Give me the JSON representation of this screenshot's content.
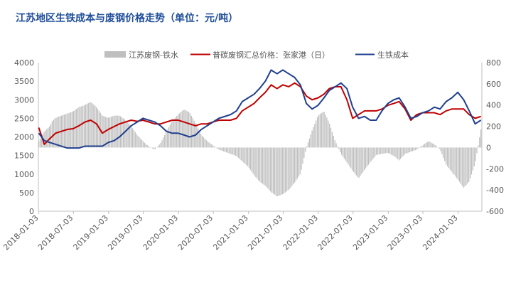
{
  "chart_data": {
    "type": "bar+line",
    "title": "江苏地区生铁成本与废钢价格走势（单位：元/吨）",
    "x_ticks": [
      "2018-01-03",
      "2018-07-03",
      "2019-01-03",
      "2019-07-03",
      "2020-01-03",
      "2020-07-03",
      "2021-01-03",
      "2021-07-03",
      "2022-01-03",
      "2022-07-03",
      "2023-01-03",
      "2023-07-03",
      "2024-01-03"
    ],
    "x_range": [
      "2018-01-01",
      "2024-05-06"
    ],
    "y_left": {
      "min": 0,
      "max": 4000,
      "step": 500,
      "ticks": [
        "0",
        "500",
        "1000",
        "1500",
        "2000",
        "2500",
        "3000",
        "3500",
        "4000"
      ]
    },
    "y_right": {
      "min": -600,
      "max": 800,
      "step": 200,
      "ticks": [
        "-600",
        "-400",
        "-200",
        "0",
        "200",
        "400",
        "600",
        "800"
      ]
    },
    "legend_position": "top-center",
    "colors": {
      "spread": "#bfbfbf",
      "scrap": "#c00000",
      "pig_iron": "#1f3f8f"
    },
    "series": [
      {
        "name": "江苏废钢-铁水",
        "type": "bar",
        "axis": "right",
        "points": [
          [
            "2018-01-03",
            60
          ],
          [
            "2018-02-01",
            150
          ],
          [
            "2018-03-01",
            200
          ],
          [
            "2018-03-15",
            250
          ],
          [
            "2018-04-01",
            280
          ],
          [
            "2018-05-01",
            300
          ],
          [
            "2018-06-01",
            320
          ],
          [
            "2018-07-01",
            340
          ],
          [
            "2018-08-01",
            380
          ],
          [
            "2018-09-01",
            400
          ],
          [
            "2018-10-01",
            430
          ],
          [
            "2018-11-01",
            380
          ],
          [
            "2018-12-01",
            300
          ],
          [
            "2019-01-01",
            280
          ],
          [
            "2019-02-01",
            300
          ],
          [
            "2019-03-01",
            300
          ],
          [
            "2019-04-01",
            260
          ],
          [
            "2019-05-01",
            200
          ],
          [
            "2019-06-01",
            120
          ],
          [
            "2019-07-01",
            60
          ],
          [
            "2019-08-01",
            10
          ],
          [
            "2019-09-01",
            -20
          ],
          [
            "2019-10-01",
            40
          ],
          [
            "2019-11-01",
            150
          ],
          [
            "2019-12-01",
            250
          ],
          [
            "2020-01-01",
            310
          ],
          [
            "2020-02-01",
            360
          ],
          [
            "2020-03-01",
            330
          ],
          [
            "2020-04-01",
            230
          ],
          [
            "2020-05-01",
            120
          ],
          [
            "2020-06-01",
            60
          ],
          [
            "2020-07-01",
            20
          ],
          [
            "2020-08-01",
            -20
          ],
          [
            "2020-09-01",
            -40
          ],
          [
            "2020-10-01",
            -60
          ],
          [
            "2020-11-01",
            -80
          ],
          [
            "2020-12-01",
            -130
          ],
          [
            "2021-01-01",
            -180
          ],
          [
            "2021-02-01",
            -260
          ],
          [
            "2021-03-01",
            -320
          ],
          [
            "2021-04-01",
            -360
          ],
          [
            "2021-05-01",
            -420
          ],
          [
            "2021-06-01",
            -460
          ],
          [
            "2021-07-01",
            -440
          ],
          [
            "2021-08-01",
            -400
          ],
          [
            "2021-09-01",
            -330
          ],
          [
            "2021-10-01",
            -250
          ],
          [
            "2021-11-01",
            0
          ],
          [
            "2021-12-01",
            160
          ],
          [
            "2022-01-01",
            300
          ],
          [
            "2022-02-01",
            340
          ],
          [
            "2022-03-01",
            230
          ],
          [
            "2022-04-01",
            60
          ],
          [
            "2022-05-01",
            -60
          ],
          [
            "2022-06-01",
            -140
          ],
          [
            "2022-07-01",
            -220
          ],
          [
            "2022-08-01",
            -290
          ],
          [
            "2022-09-01",
            -210
          ],
          [
            "2022-10-01",
            -140
          ],
          [
            "2022-11-01",
            -70
          ],
          [
            "2022-12-01",
            -60
          ],
          [
            "2023-01-01",
            -50
          ],
          [
            "2023-02-01",
            -80
          ],
          [
            "2023-03-01",
            -120
          ],
          [
            "2023-04-01",
            -60
          ],
          [
            "2023-05-01",
            -40
          ],
          [
            "2023-06-01",
            -20
          ],
          [
            "2023-07-01",
            20
          ],
          [
            "2023-08-01",
            60
          ],
          [
            "2023-09-01",
            30
          ],
          [
            "2023-10-01",
            -20
          ],
          [
            "2023-11-01",
            -160
          ],
          [
            "2023-12-01",
            -230
          ],
          [
            "2024-01-01",
            -300
          ],
          [
            "2024-02-01",
            -380
          ],
          [
            "2024-03-01",
            -320
          ],
          [
            "2024-04-01",
            -150
          ],
          [
            "2024-05-01",
            170
          ]
        ]
      },
      {
        "name": "普碳废钢汇总价格：张家港（日）",
        "type": "line",
        "axis": "left",
        "points": [
          [
            "2018-01-03",
            2250
          ],
          [
            "2018-02-01",
            1800
          ],
          [
            "2018-03-01",
            1950
          ],
          [
            "2018-04-01",
            2100
          ],
          [
            "2018-05-01",
            2150
          ],
          [
            "2018-06-01",
            2200
          ],
          [
            "2018-07-01",
            2220
          ],
          [
            "2018-08-01",
            2300
          ],
          [
            "2018-09-01",
            2400
          ],
          [
            "2018-10-01",
            2450
          ],
          [
            "2018-11-01",
            2350
          ],
          [
            "2018-12-01",
            2100
          ],
          [
            "2019-01-01",
            2200
          ],
          [
            "2019-02-01",
            2280
          ],
          [
            "2019-03-01",
            2350
          ],
          [
            "2019-04-01",
            2400
          ],
          [
            "2019-05-01",
            2450
          ],
          [
            "2019-06-01",
            2420
          ],
          [
            "2019-07-01",
            2450
          ],
          [
            "2019-08-01",
            2400
          ],
          [
            "2019-09-01",
            2350
          ],
          [
            "2019-10-01",
            2350
          ],
          [
            "2019-11-01",
            2400
          ],
          [
            "2019-12-01",
            2450
          ],
          [
            "2020-01-01",
            2450
          ],
          [
            "2020-02-01",
            2400
          ],
          [
            "2020-03-01",
            2350
          ],
          [
            "2020-04-01",
            2300
          ],
          [
            "2020-05-01",
            2350
          ],
          [
            "2020-06-01",
            2350
          ],
          [
            "2020-07-01",
            2400
          ],
          [
            "2020-08-01",
            2450
          ],
          [
            "2020-09-01",
            2450
          ],
          [
            "2020-10-01",
            2450
          ],
          [
            "2020-11-01",
            2500
          ],
          [
            "2020-12-01",
            2700
          ],
          [
            "2021-01-01",
            2800
          ],
          [
            "2021-02-01",
            2900
          ],
          [
            "2021-03-01",
            3050
          ],
          [
            "2021-04-01",
            3200
          ],
          [
            "2021-05-01",
            3400
          ],
          [
            "2021-06-01",
            3300
          ],
          [
            "2021-07-01",
            3400
          ],
          [
            "2021-08-01",
            3350
          ],
          [
            "2021-09-01",
            3450
          ],
          [
            "2021-10-01",
            3350
          ],
          [
            "2021-11-01",
            3100
          ],
          [
            "2021-12-01",
            3000
          ],
          [
            "2022-01-01",
            3050
          ],
          [
            "2022-02-01",
            3150
          ],
          [
            "2022-03-01",
            3300
          ],
          [
            "2022-04-01",
            3350
          ],
          [
            "2022-05-01",
            3350
          ],
          [
            "2022-06-01",
            3000
          ],
          [
            "2022-07-01",
            2500
          ],
          [
            "2022-08-01",
            2600
          ],
          [
            "2022-09-01",
            2700
          ],
          [
            "2022-10-01",
            2700
          ],
          [
            "2022-11-01",
            2700
          ],
          [
            "2022-12-01",
            2750
          ],
          [
            "2023-01-01",
            2850
          ],
          [
            "2023-02-01",
            2900
          ],
          [
            "2023-03-01",
            2950
          ],
          [
            "2023-04-01",
            2750
          ],
          [
            "2023-05-01",
            2450
          ],
          [
            "2023-06-01",
            2600
          ],
          [
            "2023-07-01",
            2650
          ],
          [
            "2023-08-01",
            2650
          ],
          [
            "2023-09-01",
            2650
          ],
          [
            "2023-10-01",
            2600
          ],
          [
            "2023-11-01",
            2700
          ],
          [
            "2023-12-01",
            2750
          ],
          [
            "2024-01-01",
            2750
          ],
          [
            "2024-02-01",
            2750
          ],
          [
            "2024-03-01",
            2600
          ],
          [
            "2024-04-01",
            2500
          ],
          [
            "2024-05-01",
            2550
          ]
        ]
      },
      {
        "name": "生铁成本",
        "type": "line",
        "axis": "left",
        "points": [
          [
            "2018-01-03",
            2100
          ],
          [
            "2018-02-01",
            1900
          ],
          [
            "2018-03-01",
            1850
          ],
          [
            "2018-04-01",
            1800
          ],
          [
            "2018-05-01",
            1750
          ],
          [
            "2018-06-01",
            1700
          ],
          [
            "2018-07-01",
            1700
          ],
          [
            "2018-08-01",
            1700
          ],
          [
            "2018-09-01",
            1750
          ],
          [
            "2018-10-01",
            1750
          ],
          [
            "2018-11-01",
            1750
          ],
          [
            "2018-12-01",
            1750
          ],
          [
            "2019-01-01",
            1850
          ],
          [
            "2019-02-01",
            1900
          ],
          [
            "2019-03-01",
            2000
          ],
          [
            "2019-04-01",
            2150
          ],
          [
            "2019-05-01",
            2300
          ],
          [
            "2019-06-01",
            2400
          ],
          [
            "2019-07-01",
            2500
          ],
          [
            "2019-08-01",
            2450
          ],
          [
            "2019-09-01",
            2400
          ],
          [
            "2019-10-01",
            2300
          ],
          [
            "2019-11-01",
            2150
          ],
          [
            "2019-12-01",
            2100
          ],
          [
            "2020-01-01",
            2100
          ],
          [
            "2020-02-01",
            2050
          ],
          [
            "2020-03-01",
            2000
          ],
          [
            "2020-04-01",
            2050
          ],
          [
            "2020-05-01",
            2200
          ],
          [
            "2020-06-01",
            2300
          ],
          [
            "2020-07-01",
            2400
          ],
          [
            "2020-08-01",
            2500
          ],
          [
            "2020-09-01",
            2550
          ],
          [
            "2020-10-01",
            2600
          ],
          [
            "2020-11-01",
            2700
          ],
          [
            "2020-12-01",
            2950
          ],
          [
            "2021-01-01",
            3050
          ],
          [
            "2021-02-01",
            3150
          ],
          [
            "2021-03-01",
            3300
          ],
          [
            "2021-04-01",
            3500
          ],
          [
            "2021-05-01",
            3800
          ],
          [
            "2021-06-01",
            3700
          ],
          [
            "2021-07-01",
            3800
          ],
          [
            "2021-08-01",
            3700
          ],
          [
            "2021-09-01",
            3600
          ],
          [
            "2021-10-01",
            3400
          ],
          [
            "2021-11-01",
            2900
          ],
          [
            "2021-12-01",
            2750
          ],
          [
            "2022-01-01",
            2850
          ],
          [
            "2022-02-01",
            3050
          ],
          [
            "2022-03-01",
            3250
          ],
          [
            "2022-04-01",
            3350
          ],
          [
            "2022-05-01",
            3450
          ],
          [
            "2022-06-01",
            3300
          ],
          [
            "2022-07-01",
            2800
          ],
          [
            "2022-08-01",
            2500
          ],
          [
            "2022-09-01",
            2550
          ],
          [
            "2022-10-01",
            2450
          ],
          [
            "2022-11-01",
            2450
          ],
          [
            "2022-12-01",
            2700
          ],
          [
            "2023-01-01",
            2900
          ],
          [
            "2023-02-01",
            3000
          ],
          [
            "2023-03-01",
            3050
          ],
          [
            "2023-04-01",
            2800
          ],
          [
            "2023-05-01",
            2500
          ],
          [
            "2023-06-01",
            2550
          ],
          [
            "2023-07-01",
            2650
          ],
          [
            "2023-08-01",
            2700
          ],
          [
            "2023-09-01",
            2800
          ],
          [
            "2023-10-01",
            2750
          ],
          [
            "2023-11-01",
            2950
          ],
          [
            "2023-12-01",
            3050
          ],
          [
            "2024-01-01",
            3200
          ],
          [
            "2024-02-01",
            3000
          ],
          [
            "2024-03-01",
            2700
          ],
          [
            "2024-04-01",
            2350
          ],
          [
            "2024-05-01",
            2450
          ]
        ]
      }
    ]
  }
}
